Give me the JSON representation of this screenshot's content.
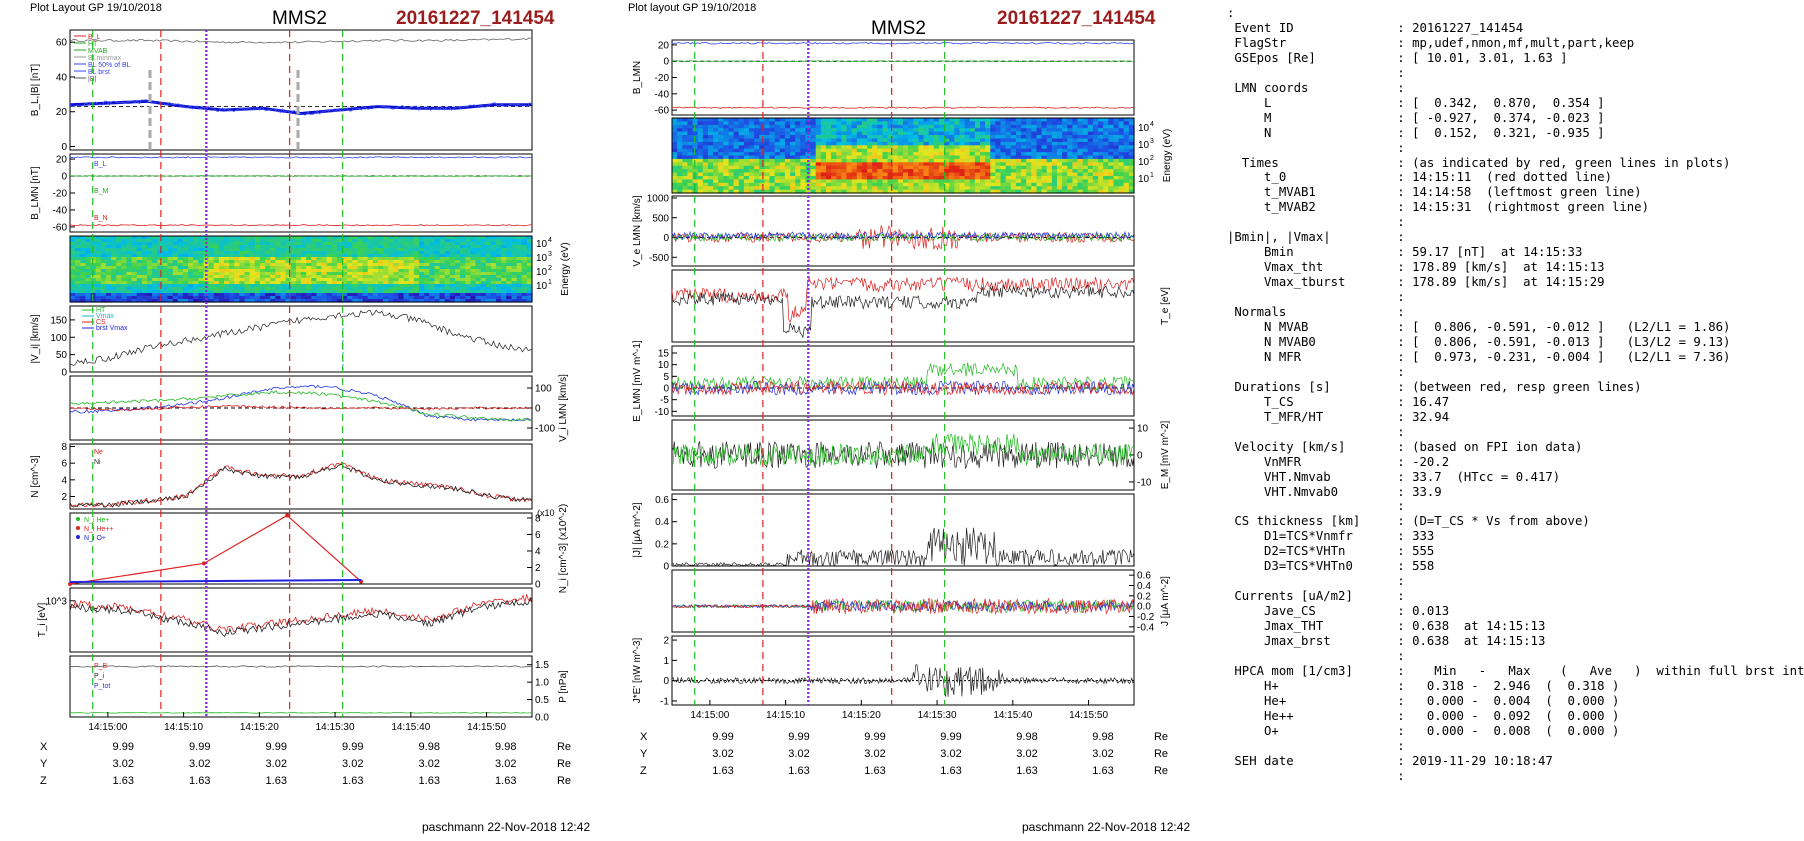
{
  "panels_left": {
    "header": "Plot Layout GP 19/10/2018",
    "spacecraft": "MMS2",
    "event": "20161227_141454",
    "footer": "paschmann 22-Nov-2018 12:42",
    "time_ticks": [
      "14:15:00",
      "14:15:10",
      "14:15:20",
      "14:15:30",
      "14:15:40",
      "14:15:50"
    ],
    "coords": [
      {
        "axis": "X",
        "values": [
          "9.99",
          "9.99",
          "9.99",
          "9.99",
          "9.98",
          "9.98"
        ],
        "unit": "Re"
      },
      {
        "axis": "Y",
        "values": [
          "3.02",
          "3.02",
          "3.02",
          "3.02",
          "3.02",
          "3.02"
        ],
        "unit": "Re"
      },
      {
        "axis": "Z",
        "values": [
          "1.63",
          "1.63",
          "1.63",
          "1.63",
          "1.63",
          "1.63"
        ],
        "unit": "Re"
      }
    ]
  },
  "panels_right": {
    "header": "Plot layout GP 19/10/2018",
    "spacecraft": "MMS2",
    "event": "20161227_141454",
    "footer": "paschmann 22-Nov-2018 12:42",
    "time_ticks": [
      "14:15:00",
      "14:15:10",
      "14:15:20",
      "14:15:30",
      "14:15:40",
      "14:15:50"
    ],
    "coords": [
      {
        "axis": "X",
        "values": [
          "9.99",
          "9.99",
          "9.99",
          "9.99",
          "9.98",
          "9.98"
        ],
        "unit": "Re"
      },
      {
        "axis": "Y",
        "values": [
          "3.02",
          "3.02",
          "3.02",
          "3.02",
          "3.02",
          "3.02"
        ],
        "unit": "Re"
      },
      {
        "axis": "Z",
        "values": [
          "1.63",
          "1.63",
          "1.63",
          "1.63",
          "1.63",
          "1.63"
        ],
        "unit": "Re"
      }
    ]
  },
  "info_lines": [
    ":",
    " Event ID              : 20161227_141454",
    " FlagStr               : mp,udef,nmon,mf,mult,part,keep",
    " GSEpos [Re]           : [ 10.01, 3.01, 1.63 ]",
    "                       :",
    " LMN coords            :",
    "     L                 : [  0.342,  0.870,  0.354 ]",
    "     M                 : [ -0.927,  0.374, -0.023 ]",
    "     N                 : [  0.152,  0.321, -0.935 ]",
    "                       :",
    "  Times                : (as indicated by red, green lines in plots)",
    "     t_0               : 14:15:11  (red dotted line)",
    "     t_MVAB1           : 14:14:58  (leftmost green line)",
    "     t_MVAB2           : 14:15:31  (rightmost green line)",
    "                       :",
    "|Bmin|, |Vmax|         :",
    "     Bmin              : 59.17 [nT]  at 14:15:33",
    "     Vmax_tht          : 178.89 [km/s]  at 14:15:13",
    "     Vmax_tburst       : 178.89 [km/s]  at 14:15:29",
    "                       :",
    " Normals               :",
    "     N MVAB            : [  0.806, -0.591, -0.012 ]   (L2/L1 = 1.86)",
    "     N MVAB0           : [  0.806, -0.591, -0.013 ]   (L3/L2 = 9.13)",
    "     N MFR             : [  0.973, -0.231, -0.004 ]   (L2/L1 = 7.36)",
    "                       :",
    " Durations [s]         : (between red, resp green lines)",
    "     T_CS              : 16.47",
    "     T_MFR/HT          : 32.94",
    "                       :",
    " Velocity [km/s]       : (based on FPI ion data)",
    "     VnMFR             : -20.2",
    "     VHT.Nmvab         : 33.7  (HTcc = 0.417)",
    "     VHT.Nmvab0        : 33.9",
    "                       :",
    " CS thickness [km]     : (D=T_CS * Vs from above)",
    "     D1=TCS*Vnmfr      : 333",
    "     D2=TCS*VHTn       : 555",
    "     D3=TCS*VHTn0      : 558",
    "                       :",
    " Currents [uA/m2]      :",
    "     Jave_CS           : 0.013",
    "     Jmax_THT          : 0.638  at 14:15:13",
    "     Jmax_brst         : 0.638  at 14:15:13",
    "                       :",
    " HPCA mom [1/cm3]      :    Min   -   Max    (   Ave   )  within full brst int",
    "     H+                :   0.318 -  2.946  (  0.318 )",
    "     He+               :   0.000 -  0.004  (  0.000 )",
    "     He++              :   0.000 -  0.092  (  0.000 )",
    "     O+                :   0.000 -  0.008  (  0.000 )",
    "                       :",
    " SEH date              : 2019-11-29 10:18:47",
    "                       :"
  ],
  "chart_data": [
    {
      "type": "line",
      "title": "MMS2 20161227_141454",
      "description_time_axis": "14:14:55 - 14:15:55 UT",
      "vertical_markers": {
        "red_dashed": [
          "14:15:07",
          "14:15:24"
        ],
        "green_dashed": [
          "14:14:58",
          "14:15:31"
        ],
        "purple_dotted": [
          "14:15:13"
        ]
      },
      "panels": [
        {
          "ylabel": "B_L,|B| [nT]",
          "ylim": [
            0,
            65
          ],
          "yticks": [
            "0",
            "20",
            "40",
            "60"
          ],
          "legend": [
            "B_L",
            "HT",
            "MVAB",
            "BLminmax",
            "BL 50% of BL",
            "BL brst",
            "|B|"
          ],
          "series": [
            {
              "name": "|B|",
              "x": [
                0,
                10,
                20,
                30,
                40,
                50,
                60
              ],
              "values": [
                61,
                61,
                60,
                60,
                61,
                61,
                62
              ],
              "color": "#555555"
            },
            {
              "name": "BL",
              "x": [
                0,
                5,
                10,
                15,
                20,
                25,
                30,
                35,
                40,
                45,
                50,
                55,
                60
              ],
              "values": [
                24,
                25,
                26,
                23,
                21,
                22,
                19,
                21,
                23,
                22,
                22,
                24,
                24
              ],
              "color": "#1111cc"
            }
          ]
        },
        {
          "ylabel": "B_LMN [nT]",
          "ylim": [
            -65,
            25
          ],
          "yticks": [
            "20",
            "0",
            "-20",
            "-40",
            "-60"
          ],
          "series": [
            {
              "name": "B_L",
              "values": [
                22,
                22,
                23,
                22,
                21,
                22,
                22,
                23
              ],
              "color": "#3344ee"
            },
            {
              "name": "B_M",
              "values": [
                0,
                0,
                0,
                0,
                0,
                0,
                0,
                0
              ],
              "color": "#22aa22"
            },
            {
              "name": "B_N",
              "values": [
                -58,
                -58,
                -58,
                -57,
                -58,
                -58,
                -58,
                -58
              ],
              "color": "#dd2222"
            }
          ]
        },
        {
          "ylabel": "Energy (eV)",
          "type": "heatmap",
          "yticks": [
            "10^1",
            "10^2",
            "10^3",
            "10^4"
          ]
        },
        {
          "ylabel": "|V_i| [km/s]",
          "ylim": [
            0,
            190
          ],
          "yticks": [
            "0",
            "50",
            "100",
            "150"
          ],
          "legend": [
            "HT",
            "Vmax",
            "CS",
            "brst Vmax"
          ],
          "series": [
            {
              "name": "|V_i|",
              "x": [
                0,
                5,
                10,
                15,
                20,
                25,
                30,
                35,
                40,
                45,
                50,
                55,
                60
              ],
              "values": [
                25,
                40,
                70,
                90,
                110,
                130,
                150,
                165,
                170,
                150,
                110,
                80,
                60
              ],
              "color": "#333333"
            }
          ]
        },
        {
          "ylabel": "V_i LMN [km/s]",
          "ylim": [
            -150,
            150
          ],
          "yticks": [
            "100",
            "0",
            "-100"
          ],
          "series": [
            {
              "name": "V_L",
              "values": [
                -20,
                -10,
                10,
                50,
                100,
                110,
                60,
                -40,
                -60,
                -60
              ],
              "color": "#2233dd"
            },
            {
              "name": "V_M",
              "values": [
                20,
                30,
                40,
                60,
                80,
                70,
                30,
                -30,
                -50,
                -60
              ],
              "color": "#22bb22"
            },
            {
              "name": "V_N",
              "values": [
                0,
                -10,
                0,
                10,
                5,
                0,
                0,
                -5,
                0,
                0
              ],
              "color": "#dd2222"
            }
          ]
        },
        {
          "ylabel": "N [cm^-3]",
          "ylim": [
            0,
            8
          ],
          "yticks": [
            "2",
            "4",
            "6",
            "8"
          ],
          "series": [
            {
              "name": "Ne",
              "x": [
                0,
                5,
                10,
                15,
                20,
                25,
                30,
                35,
                40,
                45,
                50,
                55,
                60
              ],
              "values": [
                1,
                1,
                1.5,
                2,
                5.5,
                4.5,
                4.5,
                6,
                4,
                3.5,
                3,
                2,
                1.5
              ],
              "color": "#dd2222"
            },
            {
              "name": "Ni",
              "x": [
                0,
                5,
                10,
                15,
                20,
                25,
                30,
                35,
                40,
                45,
                50,
                55,
                60
              ],
              "values": [
                1,
                1,
                1.4,
                2,
                5.3,
                4.4,
                4.4,
                5.8,
                3.9,
                3.4,
                2.9,
                2,
                1.5
              ],
              "color": "#222222"
            }
          ]
        },
        {
          "ylabel": "N_i [cm^-3] (x10^-2)",
          "ylim": [
            0,
            8
          ],
          "yticks": [
            "0",
            "2",
            "4",
            "6",
            "8"
          ],
          "legend": [
            "N_i He+",
            "N_i He++",
            "N_i O+"
          ],
          "series": [
            {
              "name": "N He++",
              "x": [
                0,
                13,
                21,
                28
              ],
              "values": [
                0,
                2.5,
                8.3,
                0.3
              ],
              "color": "#dd2222"
            },
            {
              "name": "N O+",
              "x": [
                0,
                13,
                21,
                28
              ],
              "values": [
                0,
                0.2,
                0.3,
                0.2
              ],
              "color": "#2222dd"
            }
          ]
        },
        {
          "ylabel": "T_i [eV]",
          "yticks": [
            "10^3"
          ],
          "series": [
            {
              "name": "T",
              "values": [
                900,
                850,
                700,
                500,
                600,
                700,
                800,
                650,
                900,
                1000
              ],
              "color": "#222222"
            },
            {
              "name": "T_red",
              "values": [
                950,
                900,
                750,
                550,
                650,
                750,
                850,
                700,
                950,
                1050
              ],
              "color": "#dd2222"
            }
          ]
        },
        {
          "ylabel": "P [nPa]",
          "ylim": [
            0,
            1.7
          ],
          "yticks": [
            "0.0",
            "0.5",
            "1.0",
            "1.5"
          ],
          "legend": [
            "P_B",
            "P_i",
            "P_tot"
          ],
          "series": [
            {
              "name": "P_B",
              "values": [
                1.45,
                1.45,
                1.45,
                1.4,
                1.45,
                1.45
              ],
              "color": "#555555"
            },
            {
              "name": "P_i",
              "values": [
                0.1,
                0.1,
                0.1,
                0.1,
                0.1,
                0.1
              ],
              "color": "#22bb22"
            }
          ]
        }
      ]
    },
    {
      "type": "line",
      "title": "MMS2 20161227_141454",
      "description_time_axis": "14:14:55 - 14:15:55 UT",
      "vertical_markers": {
        "red_dashed": [
          "14:15:07",
          "14:15:24"
        ],
        "green_dashed": [
          "14:14:58",
          "14:15:31"
        ],
        "purple_dotted": [
          "14:15:13"
        ]
      },
      "panels": [
        {
          "ylabel": "B_LMN",
          "ylim": [
            -65,
            25
          ],
          "yticks": [
            "20",
            "0",
            "-20",
            "-40",
            "-60"
          ],
          "series": [
            {
              "name": "B_L",
              "values": [
                22,
                22,
                23,
                22,
                21,
                22
              ],
              "color": "#3344ee"
            },
            {
              "name": "B_M",
              "values": [
                0,
                0,
                0,
                0,
                0,
                0
              ],
              "color": "#22aa22"
            },
            {
              "name": "B_N",
              "values": [
                -58,
                -58,
                -57,
                -58,
                -58,
                -58
              ],
              "color": "#dd2222"
            }
          ]
        },
        {
          "ylabel": "Energy (eV)",
          "type": "heatmap",
          "yticks": [
            "10^1",
            "10^2",
            "10^3",
            "10^4"
          ]
        },
        {
          "ylabel": "V_e LMN [km/s]",
          "ylim": [
            -700,
            1000
          ],
          "yticks": [
            "1000",
            "500",
            "0",
            "-500"
          ],
          "series": [
            {
              "name": "V_L",
              "color": "#2233dd"
            },
            {
              "name": "V_M",
              "color": "#22bb22"
            },
            {
              "name": "V_N",
              "color": "#dd2222"
            }
          ]
        },
        {
          "ylabel": "T_e [eV]",
          "series": [
            {
              "name": "T_par",
              "color": "#dd2222"
            },
            {
              "name": "T_perp",
              "color": "#222222"
            }
          ]
        },
        {
          "ylabel": "E_LMN [mV m^-1]",
          "ylim": [
            -12,
            18
          ],
          "yticks": [
            "15",
            "10",
            "5",
            "0",
            "-5",
            "-10"
          ],
          "series": [
            {
              "name": "E_L",
              "color": "#2233dd"
            },
            {
              "name": "E_M",
              "color": "#22bb22"
            },
            {
              "name": "E_N",
              "color": "#dd2222"
            }
          ]
        },
        {
          "ylabel": "E_M [mV m^-2]",
          "ylim": [
            -12,
            12
          ],
          "yticks": [
            "10",
            "0",
            "-10"
          ],
          "series": [
            {
              "name": "(VexB)_M",
              "color": "#222222"
            },
            {
              "name": "E_M",
              "color": "#22bb22"
            }
          ]
        },
        {
          "ylabel": "|J| [μA m^-2]",
          "ylim": [
            0,
            0.65
          ],
          "yticks": [
            "0",
            "0.2",
            "0.4",
            "0.6"
          ],
          "series": [
            {
              "name": "|J|",
              "color": "#222222"
            }
          ]
        },
        {
          "ylabel": "J [μA m^-2]",
          "ylim": [
            -0.5,
            0.7
          ],
          "yticks": [
            "0.6",
            "0.4",
            "0.2",
            "0.0",
            "-0.2",
            "-0.4"
          ],
          "series": [
            {
              "name": "J_L",
              "color": "#2233dd"
            },
            {
              "name": "J_M",
              "color": "#22bb22"
            },
            {
              "name": "J_N",
              "color": "#dd2222"
            }
          ]
        },
        {
          "ylabel": "J*E' [nW m^-3]",
          "ylim": [
            -1.2,
            2.2
          ],
          "yticks": [
            "2",
            "1",
            "0",
            "-1"
          ],
          "series": [
            {
              "name": "J*E'",
              "color": "#222222"
            }
          ]
        }
      ]
    }
  ]
}
